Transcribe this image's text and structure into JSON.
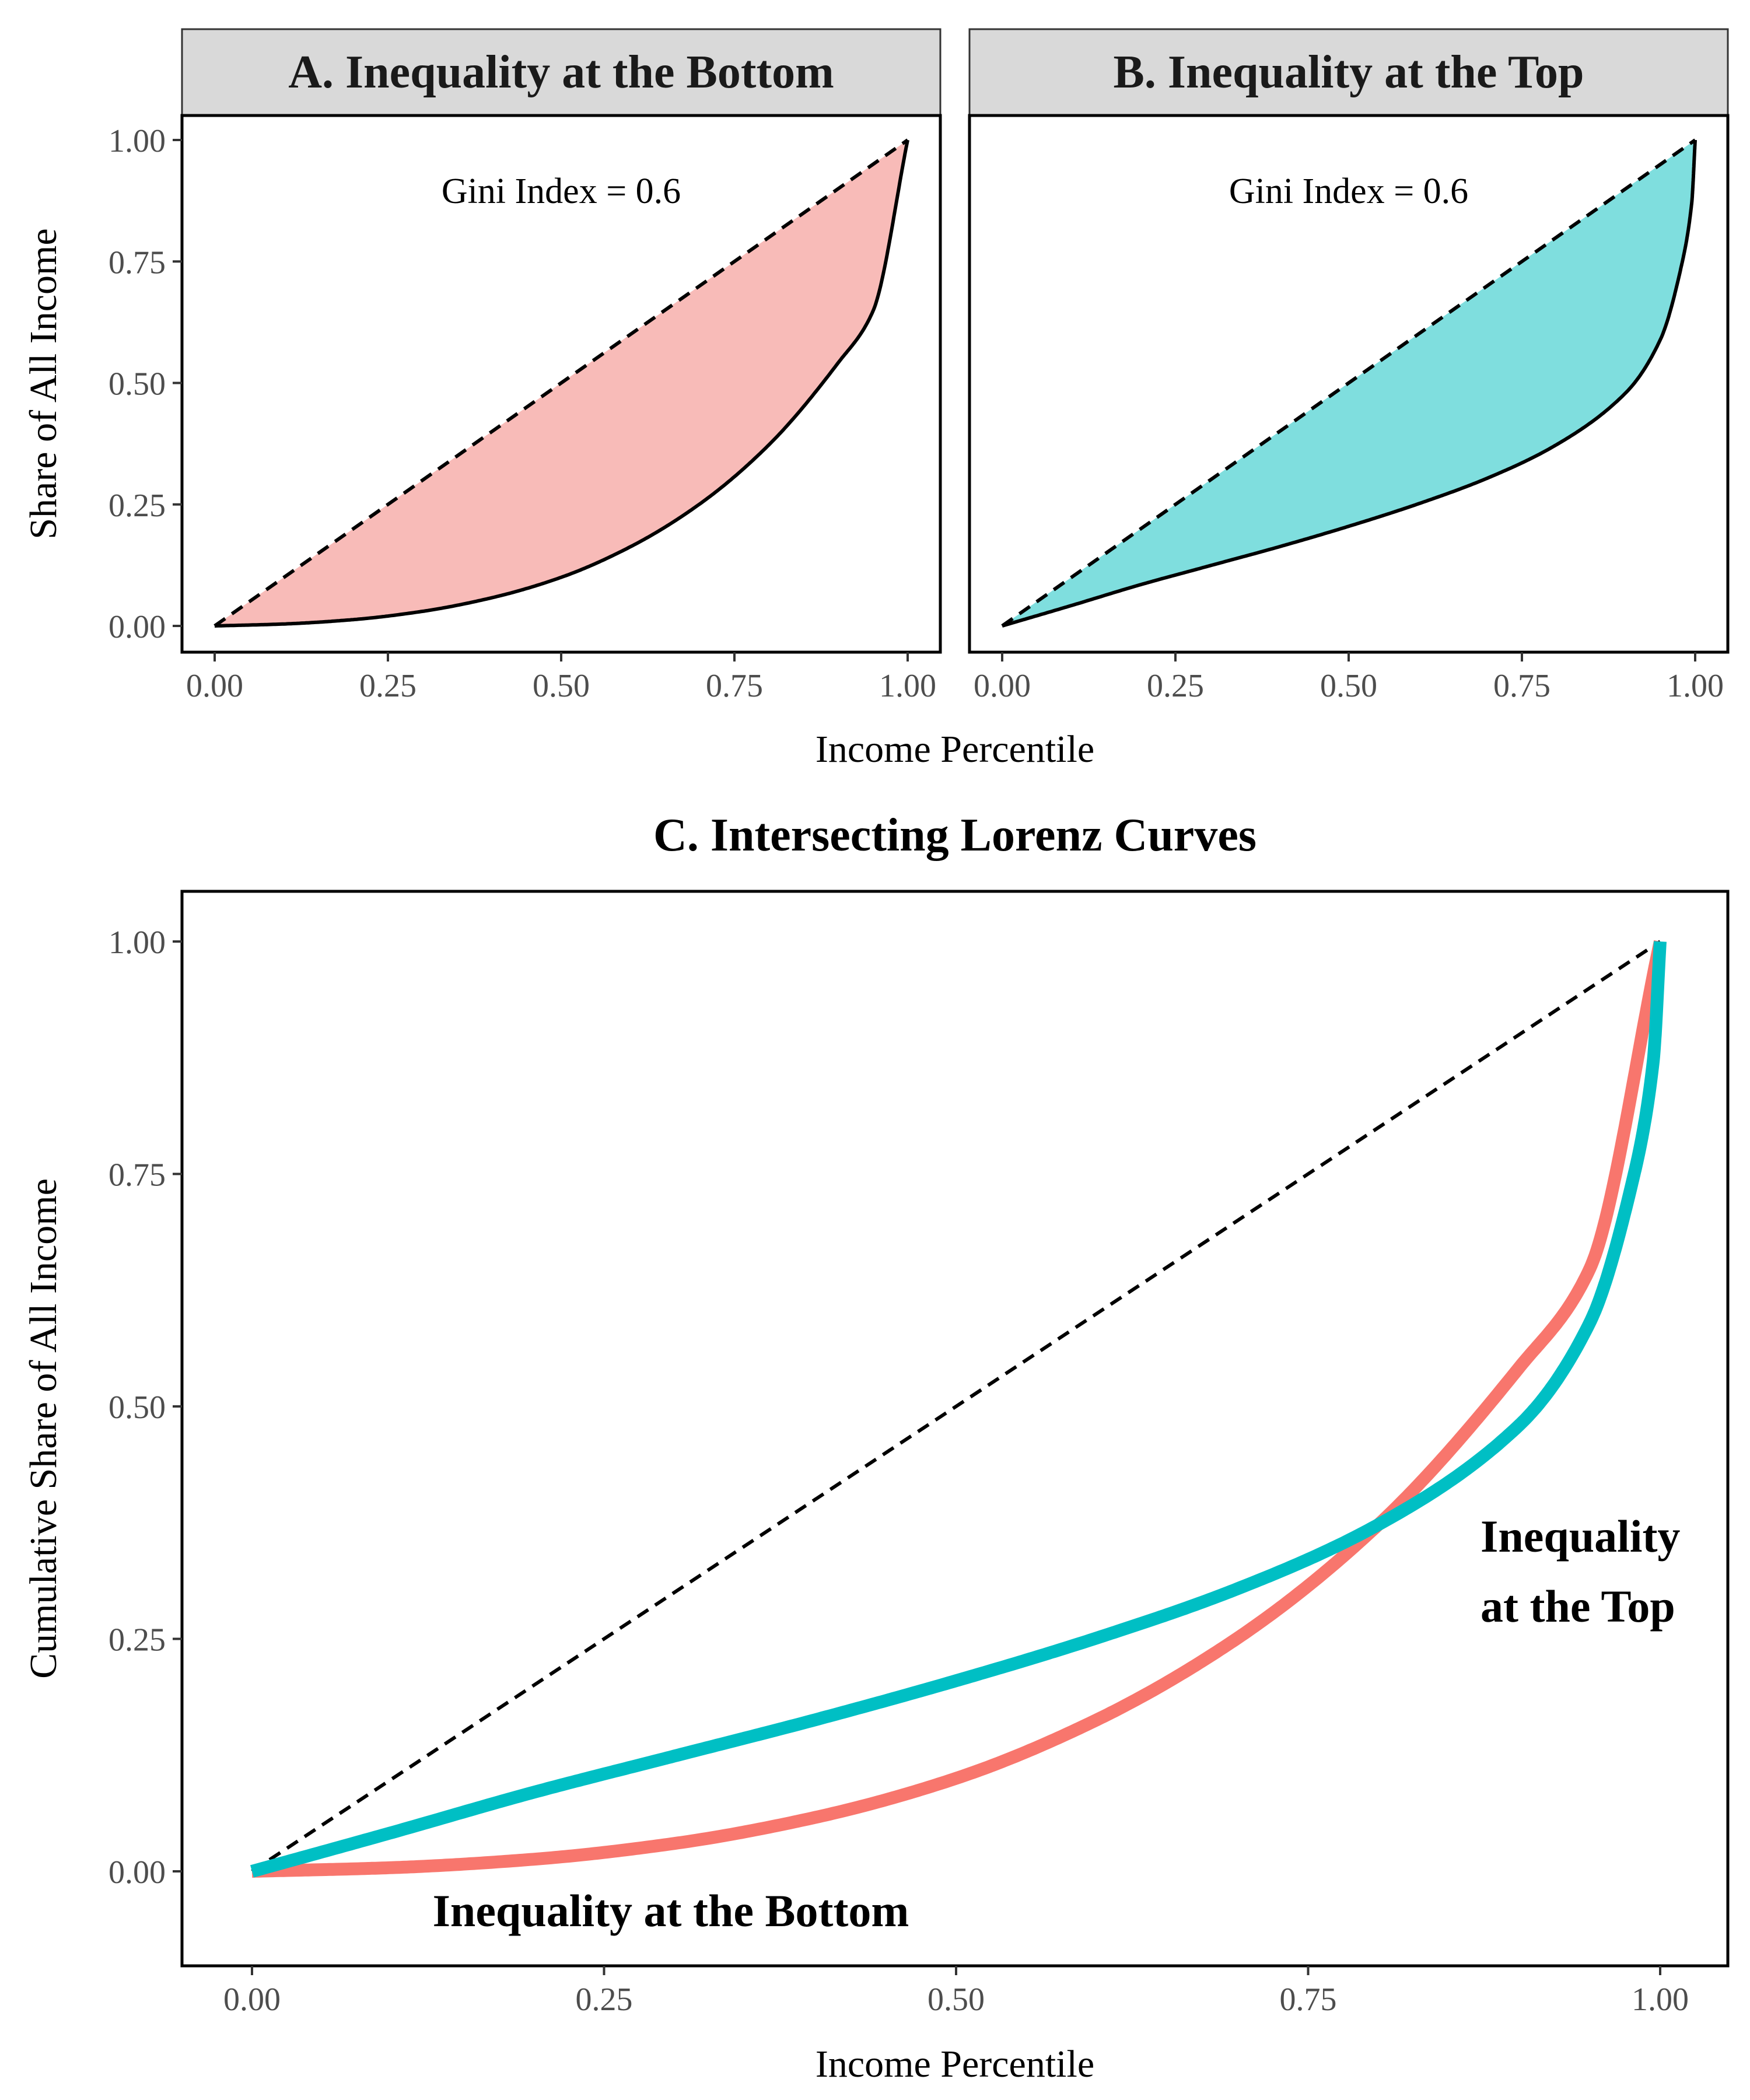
{
  "chart_data": [
    {
      "type": "area",
      "title": "A.  Inequality at the Bottom",
      "xlabel": "Income Percentile",
      "ylabel": "Share of All Income",
      "xlim": [
        0,
        1
      ],
      "ylim": [
        0,
        1
      ],
      "x_ticks": [
        "0.00",
        "0.25",
        "0.50",
        "0.75",
        "1.00"
      ],
      "y_ticks": [
        "0.00",
        "0.25",
        "0.50",
        "0.75",
        "1.00"
      ],
      "annotation": "Gini Index =  0.6",
      "fill_color": "#F8BBB8",
      "line_color": "#000000",
      "series": [
        {
          "x": [
            0,
            0.1,
            0.2,
            0.3,
            0.4,
            0.5,
            0.6,
            0.7,
            0.8,
            0.9,
            0.95,
            1.0
          ],
          "y": [
            0,
            0.004,
            0.013,
            0.03,
            0.058,
            0.1,
            0.163,
            0.251,
            0.373,
            0.542,
            0.648,
            1.0
          ]
        },
        {
          "x": [
            0,
            1
          ],
          "y": [
            0,
            1
          ],
          "line_style": "dashed"
        }
      ]
    },
    {
      "type": "area",
      "title": "B.  Inequality at the Top",
      "xlabel": "Income Percentile",
      "ylabel": "Share of All Income",
      "xlim": [
        0,
        1
      ],
      "ylim": [
        0,
        1
      ],
      "x_ticks": [
        "0.00",
        "0.25",
        "0.50",
        "0.75",
        "1.00"
      ],
      "y_ticks": [
        "0.00",
        "0.25",
        "0.50",
        "0.75",
        "1.00"
      ],
      "annotation": "Gini Index =  0.6",
      "fill_color": "#7FDEDE",
      "line_color": "#000000",
      "series": [
        {
          "x": [
            0,
            0.1,
            0.2,
            0.3,
            0.4,
            0.5,
            0.6,
            0.7,
            0.8,
            0.9,
            0.95,
            0.98,
            0.995,
            1.0
          ],
          "y": [
            0,
            0.042,
            0.085,
            0.124,
            0.163,
            0.205,
            0.251,
            0.304,
            0.373,
            0.48,
            0.59,
            0.74,
            0.87,
            1.0
          ]
        },
        {
          "x": [
            0,
            1
          ],
          "y": [
            0,
            1
          ],
          "line_style": "dashed"
        }
      ]
    },
    {
      "type": "line",
      "title": "C.  Intersecting Lorenz Curves",
      "xlabel": "Income Percentile",
      "ylabel": "Cumulative Share of All Income",
      "xlim": [
        0,
        1
      ],
      "ylim": [
        -0.1,
        1.02
      ],
      "x_ticks": [
        "0.00",
        "0.25",
        "0.50",
        "0.75",
        "1.00"
      ],
      "y_ticks": [
        "0.00",
        "0.25",
        "0.50",
        "0.75",
        "1.00"
      ],
      "annotations": {
        "bottom": "Inequality at the Bottom",
        "top_line1": "Inequality",
        "top_line2": "at the Top"
      },
      "series": [
        {
          "color": "#F8766D",
          "x": [
            0,
            0.1,
            0.2,
            0.3,
            0.4,
            0.5,
            0.6,
            0.7,
            0.8,
            0.9,
            0.95,
            1.0
          ],
          "y": [
            0,
            0.004,
            0.013,
            0.03,
            0.058,
            0.1,
            0.163,
            0.251,
            0.373,
            0.542,
            0.648,
            1.0
          ]
        },
        {
          "color": "#00BFC4",
          "x": [
            0,
            0.1,
            0.2,
            0.3,
            0.4,
            0.5,
            0.6,
            0.7,
            0.8,
            0.9,
            0.95,
            0.98,
            0.995,
            1.0
          ],
          "y": [
            0,
            0.042,
            0.085,
            0.124,
            0.163,
            0.205,
            0.251,
            0.304,
            0.373,
            0.48,
            0.59,
            0.74,
            0.87,
            1.0
          ]
        },
        {
          "color": "#000000",
          "x": [
            0,
            1
          ],
          "y": [
            0,
            1
          ],
          "line_style": "dashed"
        }
      ]
    }
  ]
}
